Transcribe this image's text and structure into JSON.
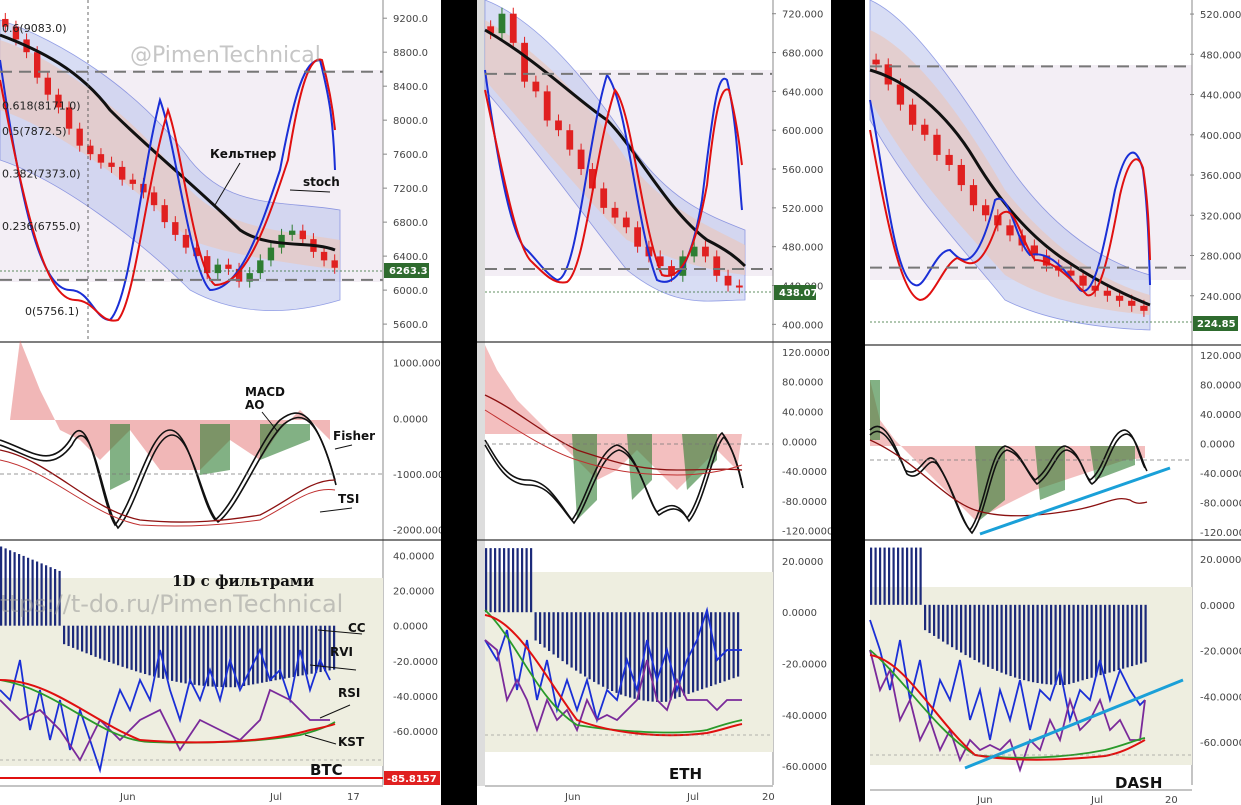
{
  "watermarks": {
    "top": "@PimenTechnical",
    "bottom": "ttps://t-do.ru/PimenTechnical"
  },
  "chart_title": "1D  с фильтрами",
  "annotations": {
    "keltner": "Кельтнер",
    "stoch": "stoch",
    "macd": "MACD",
    "ao": "AO",
    "fisher": "Fisher",
    "tsi": "TSI",
    "cc": "CC",
    "rvi": "RVI",
    "rsi": "RSI",
    "kst": "KST"
  },
  "colors": {
    "up": "#2e7d32",
    "down": "#e02020",
    "stoch_blue": "#1a2fd6",
    "stoch_red": "#e01010",
    "band_fill": "#b9c3ec",
    "keltner_fill": "#e8c7bf",
    "cc_bars": "#1c2a7a",
    "trend_line": "#1aa0d8",
    "price_badge": "#2e6b2e",
    "last_badge": "#e02020"
  },
  "chart_data": [
    {
      "type": "line",
      "symbol": "BTC",
      "x_labels": [
        "Jun",
        "Jul",
        "17"
      ],
      "price": {
        "y_ticks": [
          "9200.0",
          "8800.0",
          "8400.0",
          "8000.0",
          "7600.0",
          "7200.0",
          "6800.0",
          "6400.0",
          "6000.0",
          "5600.0"
        ],
        "ylim": [
          5460,
          9320
        ],
        "last_price": "6263.3",
        "fib_levels": [
          {
            "label": "0.6(9083.0)",
            "value": 9083.0
          },
          {
            "label": "0.618(8171.0)",
            "value": 8171.0
          },
          {
            "label": "0.5(7872.5)",
            "value": 7872.5
          },
          {
            "label": "0.382(7373.0)",
            "value": 7373.0
          },
          {
            "label": "0.236(6755.0)",
            "value": 6755.0
          },
          {
            "label": "0(5756.1)",
            "value": 5756.1
          }
        ],
        "dashed_levels": [
          8570,
          6120
        ],
        "close": [
          9100,
          8950,
          8800,
          8500,
          8300,
          8150,
          7900,
          7700,
          7600,
          7500,
          7450,
          7300,
          7250,
          7150,
          7000,
          6800,
          6650,
          6500,
          6400,
          6200,
          6300,
          6250,
          6100,
          6200,
          6350,
          6500,
          6650,
          6700,
          6600,
          6450,
          6350,
          6263
        ]
      },
      "oscillator": {
        "y_ticks": [
          "1000.0000",
          "0.0000",
          "-1000.0000",
          "-2000.0000"
        ],
        "ylim": [
          -2150,
          1300
        ]
      },
      "filters": {
        "y_ticks": [
          "40.0000",
          "20.0000",
          "0.0000",
          "-20.0000",
          "-40.0000",
          "-60.0000",
          "-85.8157"
        ],
        "ylim": [
          -90,
          47
        ],
        "last_value": "-85.8157"
      }
    },
    {
      "type": "line",
      "symbol": "ETH",
      "x_labels": [
        "Jun",
        "Jul",
        "20"
      ],
      "price": {
        "y_ticks": [
          "720.000",
          "680.000",
          "640.000",
          "600.000",
          "560.000",
          "520.000",
          "480.000",
          "440.000",
          "400.000"
        ],
        "ylim": [
          388,
          730
        ],
        "last_price": "438.07",
        "dashed_levels": [
          658,
          457
        ],
        "close": [
          700,
          720,
          690,
          650,
          640,
          610,
          600,
          580,
          560,
          540,
          520,
          510,
          500,
          480,
          470,
          460,
          450,
          470,
          480,
          470,
          450,
          440,
          438
        ]
      },
      "oscillator": {
        "y_ticks": [
          "120.0000",
          "80.0000",
          "40.0000",
          "0.0000",
          "-40.0000",
          "-80.0000",
          "-120.0000"
        ],
        "ylim": [
          -130,
          128
        ]
      },
      "filters": {
        "y_ticks": [
          "20.0000",
          "0.0000",
          "-20.0000",
          "-40.0000",
          "-60.0000"
        ],
        "ylim": [
          -67,
          27
        ]
      }
    },
    {
      "type": "line",
      "symbol": "DASH",
      "x_labels": [
        "Jun",
        "Jul",
        "20"
      ],
      "price": {
        "y_ticks": [
          "520.000",
          "480.000",
          "440.000",
          "400.000",
          "360.000",
          "320.000",
          "280.000",
          "240.000"
        ],
        "ylim": [
          200,
          530
        ],
        "last_price": "224.85",
        "dashed_levels": [
          468,
          268
        ],
        "close": [
          470,
          450,
          430,
          410,
          400,
          380,
          370,
          350,
          330,
          320,
          310,
          300,
          290,
          280,
          270,
          265,
          260,
          250,
          245,
          240,
          235,
          230,
          225
        ]
      },
      "oscillator": {
        "y_ticks": [
          "120.0000",
          "80.0000",
          "40.0000",
          "0.0000",
          "-40.0000",
          "-80.0000",
          "-120.0000"
        ],
        "ylim": [
          -128,
          128
        ]
      },
      "filters": {
        "y_ticks": [
          "20.0000",
          "0.0000",
          "-20.0000",
          "-40.0000",
          "-60.0000"
        ],
        "ylim": [
          -80,
          27
        ]
      }
    }
  ]
}
